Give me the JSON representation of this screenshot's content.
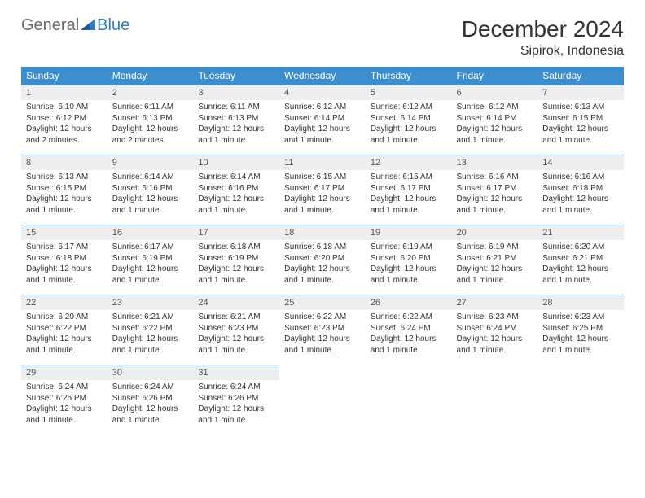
{
  "brand": {
    "word1": "General",
    "word2": "Blue"
  },
  "title": "December 2024",
  "location": "Sipirok, Indonesia",
  "colors": {
    "header_bg": "#3d8ecf",
    "header_text": "#ffffff",
    "daynum_bg": "#eceeef",
    "daynum_border": "#2f7bbf",
    "body_text": "#333333",
    "logo_gray": "#6a6a6a",
    "logo_blue": "#2f7bbf",
    "page_bg": "#ffffff"
  },
  "typography": {
    "title_fontsize": 28,
    "location_fontsize": 16,
    "weekday_fontsize": 12,
    "daynum_fontsize": 11,
    "body_fontsize": 10
  },
  "weekdays": [
    "Sunday",
    "Monday",
    "Tuesday",
    "Wednesday",
    "Thursday",
    "Friday",
    "Saturday"
  ],
  "weeks": [
    [
      {
        "n": "1",
        "sr": "Sunrise: 6:10 AM",
        "ss": "Sunset: 6:12 PM",
        "dl": "Daylight: 12 hours and 2 minutes."
      },
      {
        "n": "2",
        "sr": "Sunrise: 6:11 AM",
        "ss": "Sunset: 6:13 PM",
        "dl": "Daylight: 12 hours and 2 minutes."
      },
      {
        "n": "3",
        "sr": "Sunrise: 6:11 AM",
        "ss": "Sunset: 6:13 PM",
        "dl": "Daylight: 12 hours and 1 minute."
      },
      {
        "n": "4",
        "sr": "Sunrise: 6:12 AM",
        "ss": "Sunset: 6:14 PM",
        "dl": "Daylight: 12 hours and 1 minute."
      },
      {
        "n": "5",
        "sr": "Sunrise: 6:12 AM",
        "ss": "Sunset: 6:14 PM",
        "dl": "Daylight: 12 hours and 1 minute."
      },
      {
        "n": "6",
        "sr": "Sunrise: 6:12 AM",
        "ss": "Sunset: 6:14 PM",
        "dl": "Daylight: 12 hours and 1 minute."
      },
      {
        "n": "7",
        "sr": "Sunrise: 6:13 AM",
        "ss": "Sunset: 6:15 PM",
        "dl": "Daylight: 12 hours and 1 minute."
      }
    ],
    [
      {
        "n": "8",
        "sr": "Sunrise: 6:13 AM",
        "ss": "Sunset: 6:15 PM",
        "dl": "Daylight: 12 hours and 1 minute."
      },
      {
        "n": "9",
        "sr": "Sunrise: 6:14 AM",
        "ss": "Sunset: 6:16 PM",
        "dl": "Daylight: 12 hours and 1 minute."
      },
      {
        "n": "10",
        "sr": "Sunrise: 6:14 AM",
        "ss": "Sunset: 6:16 PM",
        "dl": "Daylight: 12 hours and 1 minute."
      },
      {
        "n": "11",
        "sr": "Sunrise: 6:15 AM",
        "ss": "Sunset: 6:17 PM",
        "dl": "Daylight: 12 hours and 1 minute."
      },
      {
        "n": "12",
        "sr": "Sunrise: 6:15 AM",
        "ss": "Sunset: 6:17 PM",
        "dl": "Daylight: 12 hours and 1 minute."
      },
      {
        "n": "13",
        "sr": "Sunrise: 6:16 AM",
        "ss": "Sunset: 6:17 PM",
        "dl": "Daylight: 12 hours and 1 minute."
      },
      {
        "n": "14",
        "sr": "Sunrise: 6:16 AM",
        "ss": "Sunset: 6:18 PM",
        "dl": "Daylight: 12 hours and 1 minute."
      }
    ],
    [
      {
        "n": "15",
        "sr": "Sunrise: 6:17 AM",
        "ss": "Sunset: 6:18 PM",
        "dl": "Daylight: 12 hours and 1 minute."
      },
      {
        "n": "16",
        "sr": "Sunrise: 6:17 AM",
        "ss": "Sunset: 6:19 PM",
        "dl": "Daylight: 12 hours and 1 minute."
      },
      {
        "n": "17",
        "sr": "Sunrise: 6:18 AM",
        "ss": "Sunset: 6:19 PM",
        "dl": "Daylight: 12 hours and 1 minute."
      },
      {
        "n": "18",
        "sr": "Sunrise: 6:18 AM",
        "ss": "Sunset: 6:20 PM",
        "dl": "Daylight: 12 hours and 1 minute."
      },
      {
        "n": "19",
        "sr": "Sunrise: 6:19 AM",
        "ss": "Sunset: 6:20 PM",
        "dl": "Daylight: 12 hours and 1 minute."
      },
      {
        "n": "20",
        "sr": "Sunrise: 6:19 AM",
        "ss": "Sunset: 6:21 PM",
        "dl": "Daylight: 12 hours and 1 minute."
      },
      {
        "n": "21",
        "sr": "Sunrise: 6:20 AM",
        "ss": "Sunset: 6:21 PM",
        "dl": "Daylight: 12 hours and 1 minute."
      }
    ],
    [
      {
        "n": "22",
        "sr": "Sunrise: 6:20 AM",
        "ss": "Sunset: 6:22 PM",
        "dl": "Daylight: 12 hours and 1 minute."
      },
      {
        "n": "23",
        "sr": "Sunrise: 6:21 AM",
        "ss": "Sunset: 6:22 PM",
        "dl": "Daylight: 12 hours and 1 minute."
      },
      {
        "n": "24",
        "sr": "Sunrise: 6:21 AM",
        "ss": "Sunset: 6:23 PM",
        "dl": "Daylight: 12 hours and 1 minute."
      },
      {
        "n": "25",
        "sr": "Sunrise: 6:22 AM",
        "ss": "Sunset: 6:23 PM",
        "dl": "Daylight: 12 hours and 1 minute."
      },
      {
        "n": "26",
        "sr": "Sunrise: 6:22 AM",
        "ss": "Sunset: 6:24 PM",
        "dl": "Daylight: 12 hours and 1 minute."
      },
      {
        "n": "27",
        "sr": "Sunrise: 6:23 AM",
        "ss": "Sunset: 6:24 PM",
        "dl": "Daylight: 12 hours and 1 minute."
      },
      {
        "n": "28",
        "sr": "Sunrise: 6:23 AM",
        "ss": "Sunset: 6:25 PM",
        "dl": "Daylight: 12 hours and 1 minute."
      }
    ],
    [
      {
        "n": "29",
        "sr": "Sunrise: 6:24 AM",
        "ss": "Sunset: 6:25 PM",
        "dl": "Daylight: 12 hours and 1 minute."
      },
      {
        "n": "30",
        "sr": "Sunrise: 6:24 AM",
        "ss": "Sunset: 6:26 PM",
        "dl": "Daylight: 12 hours and 1 minute."
      },
      {
        "n": "31",
        "sr": "Sunrise: 6:24 AM",
        "ss": "Sunset: 6:26 PM",
        "dl": "Daylight: 12 hours and 1 minute."
      },
      null,
      null,
      null,
      null
    ]
  ]
}
